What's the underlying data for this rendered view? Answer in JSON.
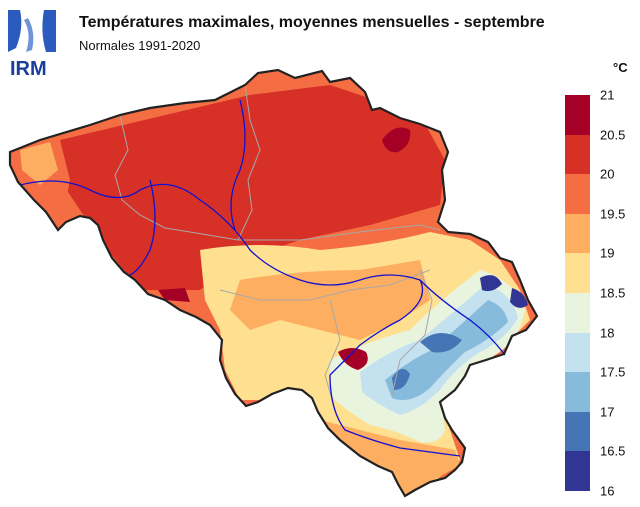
{
  "header": {
    "logo_text": "IRM",
    "title": "Températures maximales, moyennes mensuelles - septembre",
    "subtitle": "Normales 1991-2020"
  },
  "legend": {
    "unit": "°C",
    "ticks": [
      "21",
      "20.5",
      "20",
      "19.5",
      "19",
      "18.5",
      "18",
      "17.5",
      "17",
      "16.5",
      "16"
    ],
    "bins": [
      {
        "from": 20.5,
        "to": 21,
        "color": "#a50026"
      },
      {
        "from": 20,
        "to": 20.5,
        "color": "#d73027"
      },
      {
        "from": 19.5,
        "to": 20,
        "color": "#f46d43"
      },
      {
        "from": 19,
        "to": 19.5,
        "color": "#fdae61"
      },
      {
        "from": 18.5,
        "to": 19,
        "color": "#fee090"
      },
      {
        "from": 18,
        "to": 18.5,
        "color": "#e8f4dd"
      },
      {
        "from": 17.5,
        "to": 18,
        "color": "#c4e1ef"
      },
      {
        "from": 17,
        "to": 17.5,
        "color": "#87bbdc"
      },
      {
        "from": 16.5,
        "to": 17,
        "color": "#4575b4"
      },
      {
        "from": 16,
        "to": 16.5,
        "color": "#313695"
      }
    ]
  },
  "map": {
    "country": "Belgium",
    "colors": {
      "border": "#222222",
      "rivers": "#1010d0",
      "provinces": "#a8a8a8"
    }
  }
}
